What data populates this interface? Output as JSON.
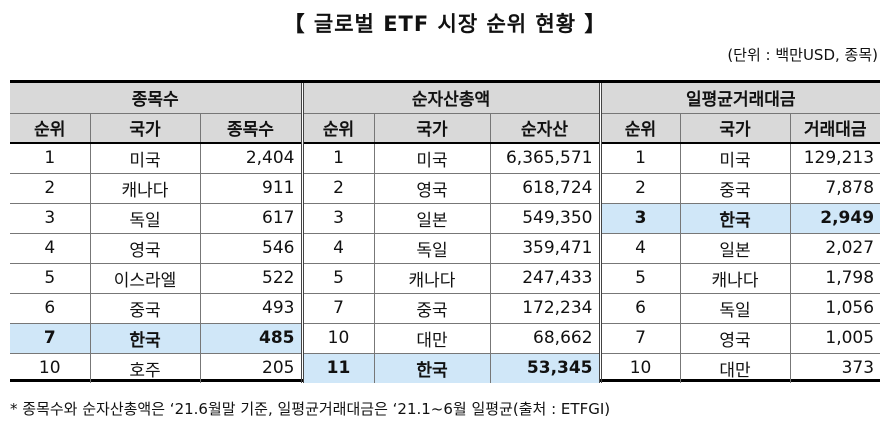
{
  "title": "【 글로벌 ETF 시장 순위 현황 】",
  "unit": "(단위 : 백만USD, 종목)",
  "groups": [
    {
      "label": "종목수",
      "headers": [
        "순위",
        "국가",
        "종목수"
      ],
      "rows": [
        [
          "1",
          "미국",
          "2,404"
        ],
        [
          "2",
          "캐나다",
          "911"
        ],
        [
          "3",
          "독일",
          "617"
        ],
        [
          "4",
          "영국",
          "546"
        ],
        [
          "5",
          "이스라엘",
          "522"
        ],
        [
          "6",
          "중국",
          "493"
        ],
        [
          "7",
          "한국",
          "485"
        ],
        [
          "10",
          "호주",
          "205"
        ]
      ]
    },
    {
      "label": "순자산총액",
      "headers": [
        "순위",
        "국가",
        "순자산"
      ],
      "rows": [
        [
          "1",
          "미국",
          "6,365,571"
        ],
        [
          "2",
          "영국",
          "618,724"
        ],
        [
          "3",
          "일본",
          "549,350"
        ],
        [
          "4",
          "독일",
          "359,471"
        ],
        [
          "5",
          "캐나다",
          "247,433"
        ],
        [
          "7",
          "중국",
          "172,234"
        ],
        [
          "10",
          "대만",
          "68,662"
        ],
        [
          "11",
          "한국",
          "53,345"
        ]
      ]
    },
    {
      "label": "일평균거래대금",
      "headers": [
        "순위",
        "국가",
        "거래대금"
      ],
      "rows": [
        [
          "1",
          "미국",
          "129,213"
        ],
        [
          "2",
          "중국",
          "7,878"
        ],
        [
          "3",
          "한국",
          "2,949"
        ],
        [
          "4",
          "일본",
          "2,027"
        ],
        [
          "5",
          "캐나다",
          "1,798"
        ],
        [
          "6",
          "독일",
          "1,056"
        ],
        [
          "7",
          "영국",
          "1,005"
        ],
        [
          "10",
          "대만",
          "373"
        ]
      ]
    }
  ],
  "highlight_color": "#d0e7f8",
  "note": "* 종목수와 순자산총액은 ‘21.6월말 기준, 일평균거래대금은 ‘21.1~6월 일평균(출처 : ETFGI)"
}
